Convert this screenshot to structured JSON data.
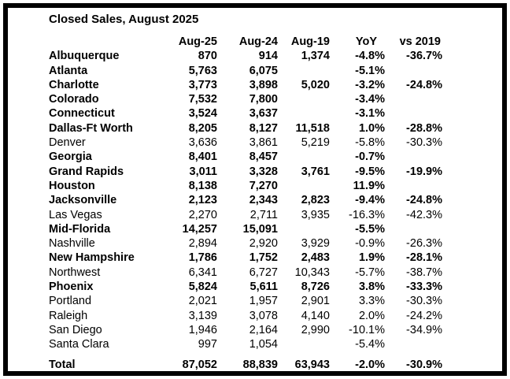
{
  "title": "Closed Sales, August 2025",
  "chart_data": {
    "type": "table",
    "title": "Closed Sales, August 2025",
    "columns": [
      "",
      "Aug-25",
      "Aug-24",
      "Aug-19",
      "YoY",
      "vs 2019"
    ],
    "rows": [
      {
        "label": "Albuquerque",
        "values": [
          "870",
          "914",
          "1,374",
          "-4.8%",
          "-36.7%"
        ],
        "bold": true
      },
      {
        "label": "Atlanta",
        "values": [
          "5,763",
          "6,075",
          "",
          "-5.1%",
          ""
        ],
        "bold": true
      },
      {
        "label": "Charlotte",
        "values": [
          "3,773",
          "3,898",
          "5,020",
          "-3.2%",
          "-24.8%"
        ],
        "bold": true
      },
      {
        "label": "Colorado",
        "values": [
          "7,532",
          "7,800",
          "",
          "-3.4%",
          ""
        ],
        "bold": true
      },
      {
        "label": "Connecticut",
        "values": [
          "3,524",
          "3,637",
          "",
          "-3.1%",
          ""
        ],
        "bold": true
      },
      {
        "label": "Dallas-Ft Worth",
        "values": [
          "8,205",
          "8,127",
          "11,518",
          "1.0%",
          "-28.8%"
        ],
        "bold": true
      },
      {
        "label": "Denver",
        "values": [
          "3,636",
          "3,861",
          "5,219",
          "-5.8%",
          "-30.3%"
        ],
        "bold": false
      },
      {
        "label": "Georgia",
        "values": [
          "8,401",
          "8,457",
          "",
          "-0.7%",
          ""
        ],
        "bold": true
      },
      {
        "label": "Grand Rapids",
        "values": [
          "3,011",
          "3,328",
          "3,761",
          "-9.5%",
          "-19.9%"
        ],
        "bold": true
      },
      {
        "label": "Houston",
        "values": [
          "8,138",
          "7,270",
          "",
          "11.9%",
          ""
        ],
        "bold": true
      },
      {
        "label": "Jacksonville",
        "values": [
          "2,123",
          "2,343",
          "2,823",
          "-9.4%",
          "-24.8%"
        ],
        "bold": true
      },
      {
        "label": "Las Vegas",
        "values": [
          "2,270",
          "2,711",
          "3,935",
          "-16.3%",
          "-42.3%"
        ],
        "bold": false
      },
      {
        "label": "Mid-Florida",
        "values": [
          "14,257",
          "15,091",
          "",
          "-5.5%",
          ""
        ],
        "bold": true
      },
      {
        "label": "Nashville",
        "values": [
          "2,894",
          "2,920",
          "3,929",
          "-0.9%",
          "-26.3%"
        ],
        "bold": false
      },
      {
        "label": "New Hampshire",
        "values": [
          "1,786",
          "1,752",
          "2,483",
          "1.9%",
          "-28.1%"
        ],
        "bold": true
      },
      {
        "label": "Northwest",
        "values": [
          "6,341",
          "6,727",
          "10,343",
          "-5.7%",
          "-38.7%"
        ],
        "bold": false
      },
      {
        "label": "Phoenix",
        "values": [
          "5,824",
          "5,611",
          "8,726",
          "3.8%",
          "-33.3%"
        ],
        "bold": true
      },
      {
        "label": "Portland",
        "values": [
          "2,021",
          "1,957",
          "2,901",
          "3.3%",
          "-30.3%"
        ],
        "bold": false
      },
      {
        "label": "Raleigh",
        "values": [
          "3,139",
          "3,078",
          "4,140",
          "2.0%",
          "-24.2%"
        ],
        "bold": false
      },
      {
        "label": "San Diego",
        "values": [
          "1,946",
          "2,164",
          "2,990",
          "-10.1%",
          "-34.9%"
        ],
        "bold": false
      },
      {
        "label": "Santa Clara",
        "values": [
          "997",
          "1,054",
          "",
          "-5.4%",
          ""
        ],
        "bold": false
      }
    ],
    "total_row": {
      "label": "Total",
      "values": [
        "87,052",
        "88,839",
        "63,943",
        "-2.0%",
        "-30.9%"
      ],
      "bold": true
    }
  }
}
